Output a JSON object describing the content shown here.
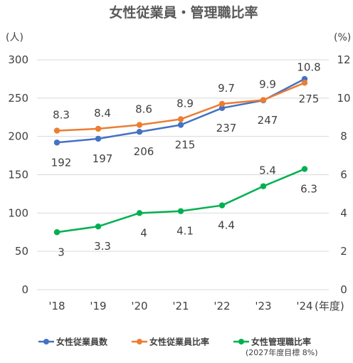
{
  "chart_data": {
    "type": "line",
    "title": "女性従業員・管理職比率",
    "categories": [
      "'18",
      "'19",
      "'20",
      "'21",
      "'22",
      "'23",
      "'24"
    ],
    "x_unit": "(年度)",
    "y_left": {
      "unit": "(人)",
      "ylim": [
        0,
        300
      ],
      "ticks": [
        0,
        50,
        100,
        150,
        200,
        250,
        300
      ]
    },
    "y_right": {
      "unit": "(%)",
      "ylim": [
        0,
        12
      ],
      "ticks": [
        0,
        2,
        4,
        6,
        8,
        10,
        12
      ]
    },
    "grid": "horizontal",
    "legend_position": "bottom",
    "series": [
      {
        "name": "女性従業員数",
        "axis": "left",
        "color": "#4472c4",
        "values": [
          192,
          197,
          206,
          215,
          237,
          247,
          275
        ],
        "labels": [
          "192",
          "197",
          "206",
          "215",
          "237",
          "247",
          "275"
        ]
      },
      {
        "name": "女性従業員比率",
        "axis": "right",
        "color": "#ed7d31",
        "values": [
          8.3,
          8.4,
          8.6,
          8.9,
          9.7,
          9.9,
          10.8
        ],
        "labels": [
          "8.3",
          "8.4",
          "8.6",
          "8.9",
          "9.7",
          "9.9",
          "10.8"
        ]
      },
      {
        "name": "女性管理職比率",
        "axis": "right",
        "color": "#00b050",
        "values": [
          3,
          3.3,
          4,
          4.1,
          4.4,
          5.4,
          6.3
        ],
        "labels": [
          "3",
          "3.3",
          "4",
          "4.1",
          "4.4",
          "5.4",
          "6.3"
        ]
      }
    ],
    "legend_note": "(2027年度目標 8%)"
  }
}
